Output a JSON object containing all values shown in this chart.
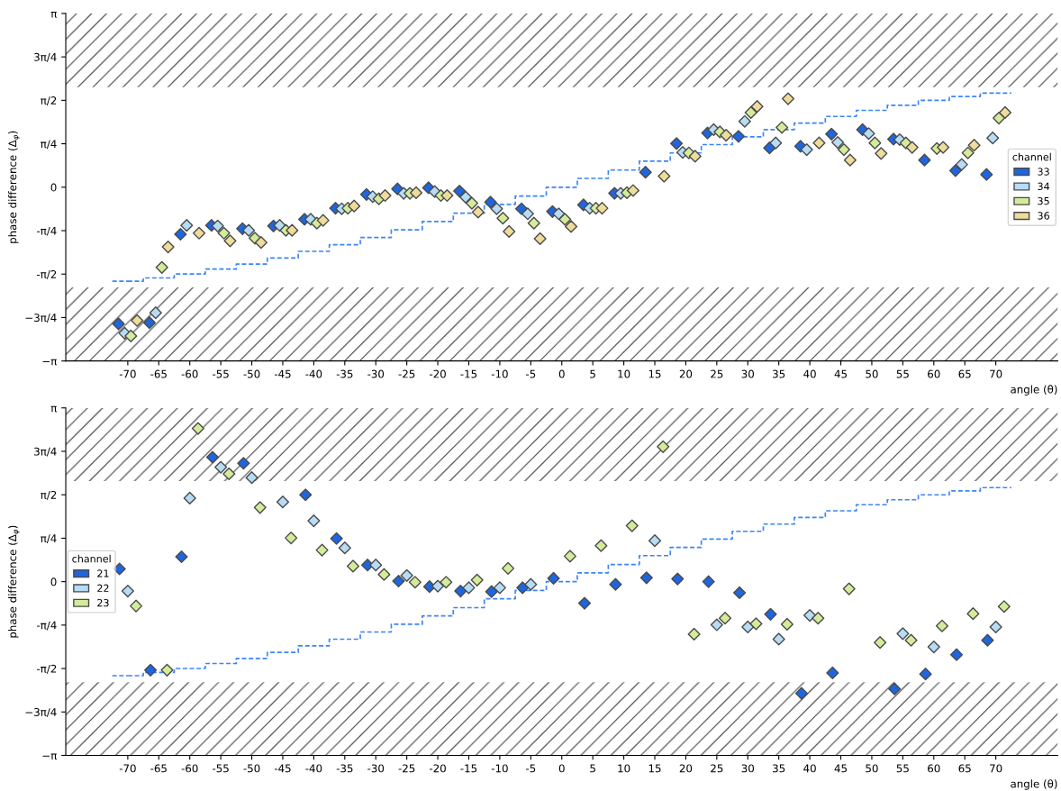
{
  "chart_data": [
    {
      "type": "scatter",
      "ylabel": "phase difference (Δ$_{φ}$)",
      "xlabel": "angle (θ)",
      "legend_title": "channel",
      "legend": "right",
      "grid": false,
      "categories": [
        "-70",
        "-65",
        "-60",
        "-55",
        "-50",
        "-45",
        "-40",
        "-35",
        "-30",
        "-25",
        "-20",
        "-15",
        "-10",
        "-5",
        "0",
        "5",
        "10",
        "15",
        "20",
        "25",
        "30",
        "35",
        "40",
        "45",
        "50",
        "55",
        "60",
        "65",
        "70"
      ],
      "ylim": [
        -3.1416,
        3.1416
      ],
      "yticks": [
        {
          "value": -3.1416,
          "label": "−π"
        },
        {
          "value": -2.3562,
          "label": "−3π/4"
        },
        {
          "value": -1.5708,
          "label": "-π/2"
        },
        {
          "value": -0.7854,
          "label": "-π/4"
        },
        0,
        {
          "value": 0.7854,
          "label": "π/4"
        },
        {
          "value": 1.5708,
          "label": "π/2"
        },
        {
          "value": 2.3562,
          "label": "3π/4"
        },
        {
          "value": 3.1416,
          "label": "π"
        }
      ],
      "bands": [
        {
          "axis": "y",
          "from": 1.81,
          "to": 3.1416,
          "color": "#444444"
        },
        {
          "axis": "y",
          "from": -3.1416,
          "to": -1.81,
          "color": "#444444"
        }
      ],
      "series": [
        {
          "name": "33",
          "color": "#1e66e0",
          "marker": "diamond",
          "values": [
            -2.47,
            -2.45,
            -0.85,
            -0.69,
            -0.75,
            -0.7,
            -0.58,
            -0.38,
            -0.13,
            -0.03,
            -0.01,
            -0.07,
            -0.27,
            -0.39,
            -0.44,
            -0.32,
            -0.11,
            0.27,
            0.79,
            0.98,
            0.92,
            0.71,
            0.74,
            0.96,
            1.04,
            0.87,
            0.49,
            0.3,
            0.23
          ]
        },
        {
          "name": "34",
          "color": "#b7dcf5",
          "marker": "diamond",
          "values": [
            -2.64,
            -2.27,
            -0.69,
            -0.7,
            -0.78,
            -0.69,
            -0.58,
            -0.39,
            -0.17,
            -0.11,
            -0.08,
            -0.18,
            -0.39,
            -0.48,
            -0.48,
            -0.38,
            -0.11,
            null,
            0.63,
            1.04,
            1.19,
            0.8,
            0.68,
            0.81,
            0.97,
            0.86,
            null,
            0.41,
            0.89
          ]
        },
        {
          "name": "35",
          "color": "#d4ec9a",
          "marker": "diamond",
          "values": [
            -2.69,
            -1.45,
            null,
            -0.83,
            -0.92,
            -0.78,
            -0.65,
            -0.38,
            -0.21,
            -0.11,
            -0.15,
            -0.29,
            -0.56,
            -0.65,
            -0.58,
            -0.38,
            -0.1,
            null,
            0.62,
            1.0,
            1.35,
            1.08,
            null,
            0.68,
            0.8,
            0.8,
            0.7,
            0.62,
            1.25
          ]
        },
        {
          "name": "36",
          "color": "#eedc9a",
          "marker": "diamond",
          "values": [
            -2.41,
            -1.08,
            -0.83,
            -0.97,
            -1.0,
            -0.78,
            -0.6,
            -0.34,
            -0.15,
            -0.1,
            -0.15,
            -0.45,
            -0.8,
            -0.93,
            -0.71,
            -0.38,
            -0.06,
            0.2,
            0.56,
            0.94,
            1.46,
            1.6,
            0.8,
            0.49,
            0.61,
            0.72,
            0.72,
            0.76,
            1.35
          ]
        },
        {
          "type": "step",
          "color": "#3d85f5",
          "line_style": "dashed",
          "values": [
            -1.7,
            -1.64,
            -1.57,
            -1.48,
            -1.39,
            -1.28,
            -1.16,
            -1.04,
            -0.91,
            -0.77,
            -0.62,
            -0.47,
            -0.31,
            -0.16,
            0,
            0.16,
            0.31,
            0.47,
            0.62,
            0.77,
            0.91,
            1.04,
            1.16,
            1.28,
            1.39,
            1.48,
            1.57,
            1.64,
            1.7
          ]
        }
      ]
    },
    {
      "type": "scatter",
      "ylabel": "phase difference (Δ$_{φ}$)",
      "xlabel": "angle (θ)",
      "legend_title": "channel",
      "legend": "left",
      "grid": false,
      "categories": [
        "-70",
        "-65",
        "-60",
        "-55",
        "-50",
        "-45",
        "-40",
        "-35",
        "-30",
        "-25",
        "-20",
        "-15",
        "-10",
        "-5",
        "0",
        "5",
        "10",
        "15",
        "20",
        "25",
        "30",
        "35",
        "40",
        "45",
        "50",
        "55",
        "60",
        "65",
        "70"
      ],
      "ylim": [
        -3.1416,
        3.1416
      ],
      "yticks": [
        {
          "value": -3.1416,
          "label": "−π"
        },
        {
          "value": -2.3562,
          "label": "−3π/4"
        },
        {
          "value": -1.5708,
          "label": "-π/2"
        },
        {
          "value": -0.7854,
          "label": "-π/4"
        },
        0,
        {
          "value": 0.7854,
          "label": "π/4"
        },
        {
          "value": 1.5708,
          "label": "π/2"
        },
        {
          "value": 2.3562,
          "label": "3π/4"
        },
        {
          "value": 3.1416,
          "label": "π"
        }
      ],
      "bands": [
        {
          "axis": "y",
          "from": 1.82,
          "to": 3.1416,
          "color": "#444444"
        },
        {
          "axis": "y",
          "from": -3.1416,
          "to": -1.82,
          "color": "#444444"
        }
      ],
      "series": [
        {
          "name": "21",
          "color": "#1e66e0",
          "marker": "diamond",
          "values": [
            0.23,
            -1.6,
            0.45,
            2.25,
            2.14,
            null,
            1.57,
            0.78,
            0.3,
            0.01,
            -0.09,
            -0.17,
            -0.18,
            -0.11,
            0.06,
            -0.39,
            -0.05,
            0.07,
            0.05,
            0.0,
            -0.2,
            -0.59,
            -2.02,
            -1.65,
            null,
            -1.94,
            -1.67,
            -1.32,
            -1.06
          ]
        },
        {
          "name": "22",
          "color": "#b7dcf5",
          "marker": "diamond",
          "values": [
            -0.17,
            null,
            1.51,
            2.07,
            1.88,
            1.44,
            1.1,
            0.61,
            0.3,
            0.11,
            -0.08,
            -0.11,
            -0.11,
            -0.05,
            null,
            null,
            null,
            0.74,
            null,
            -0.78,
            -0.82,
            -1.04,
            -0.61,
            null,
            null,
            -0.94,
            -1.18,
            null,
            -0.82
          ]
        },
        {
          "name": "23",
          "color": "#d4ec9a",
          "marker": "diamond",
          "values": [
            -0.44,
            -1.6,
            2.77,
            1.95,
            1.34,
            0.79,
            0.57,
            0.28,
            0.13,
            -0.01,
            -0.01,
            0.03,
            0.24,
            null,
            0.46,
            0.65,
            1.01,
            2.44,
            -0.95,
            -0.66,
            -0.76,
            -0.77,
            -0.66,
            -0.13,
            -1.1,
            -1.06,
            -0.8,
            -0.58,
            -0.45
          ]
        },
        {
          "type": "step",
          "color": "#3d85f5",
          "line_style": "dashed",
          "values": [
            -1.7,
            -1.64,
            -1.57,
            -1.48,
            -1.39,
            -1.28,
            -1.16,
            -1.04,
            -0.91,
            -0.77,
            -0.62,
            -0.47,
            -0.31,
            -0.16,
            0,
            0.16,
            0.31,
            0.47,
            0.62,
            0.77,
            0.91,
            1.04,
            1.16,
            1.28,
            1.39,
            1.48,
            1.57,
            1.64,
            1.7
          ]
        }
      ]
    }
  ]
}
